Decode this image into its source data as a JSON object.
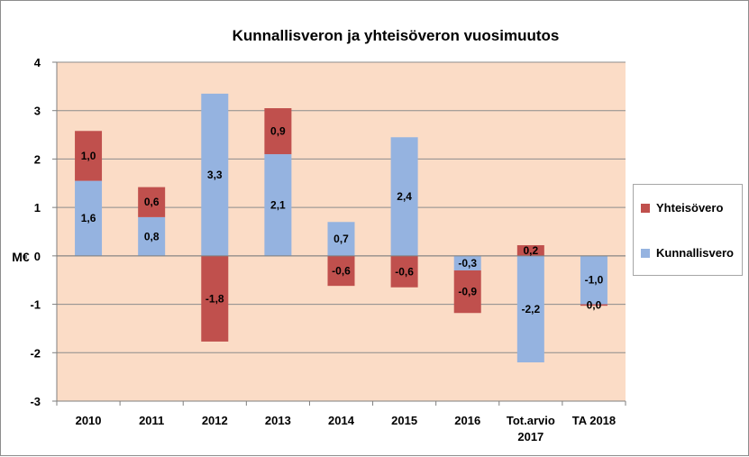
{
  "chart_data": {
    "type": "bar",
    "stacked": true,
    "title": "Kunnallisveron ja yhteisöveron vuosimuutos",
    "ylabel": "M€",
    "xlabel": "",
    "ylim": [
      -3,
      4
    ],
    "yticks": [
      "4",
      "3",
      "2",
      "1",
      "0",
      "-1",
      "-2",
      "-3"
    ],
    "ytick_values": [
      4,
      3,
      2,
      1,
      0,
      -1,
      -2,
      -3
    ],
    "grid": true,
    "legend_position": "right",
    "categories": [
      [
        "2010"
      ],
      [
        "2011"
      ],
      [
        "2012"
      ],
      [
        "2013"
      ],
      [
        "2014"
      ],
      [
        "2015"
      ],
      [
        "2016"
      ],
      [
        "Tot.arvio",
        "2017"
      ],
      [
        "TA 2018"
      ]
    ],
    "series": [
      {
        "name": "Kunnallisvero",
        "color": "#95b3e0",
        "values": [
          1.55,
          0.8,
          3.35,
          2.1,
          0.7,
          2.45,
          -0.3,
          -2.2,
          -1.0
        ],
        "labels": [
          "1,6",
          "0,8",
          "3,3",
          "2,1",
          "0,7",
          "2,4",
          "-0,3",
          "-2,2",
          "-1,0"
        ]
      },
      {
        "name": "Yhteisövero",
        "color": "#c0504d",
        "values": [
          1.03,
          0.62,
          -1.77,
          0.95,
          -0.62,
          -0.65,
          -0.88,
          0.22,
          -0.03
        ],
        "labels": [
          "1,0",
          "0,6",
          "-1,8",
          "0,9",
          "-0,6",
          "-0,6",
          "-0,9",
          "0,2",
          "0,0"
        ]
      }
    ],
    "legend": [
      {
        "name": "Yhteisövero",
        "color": "#c0504d"
      },
      {
        "name": "Kunnallisvero",
        "color": "#95b3e0"
      }
    ],
    "plot_background": "#fbdcc6",
    "gridline_color": "#8c8c8c"
  }
}
